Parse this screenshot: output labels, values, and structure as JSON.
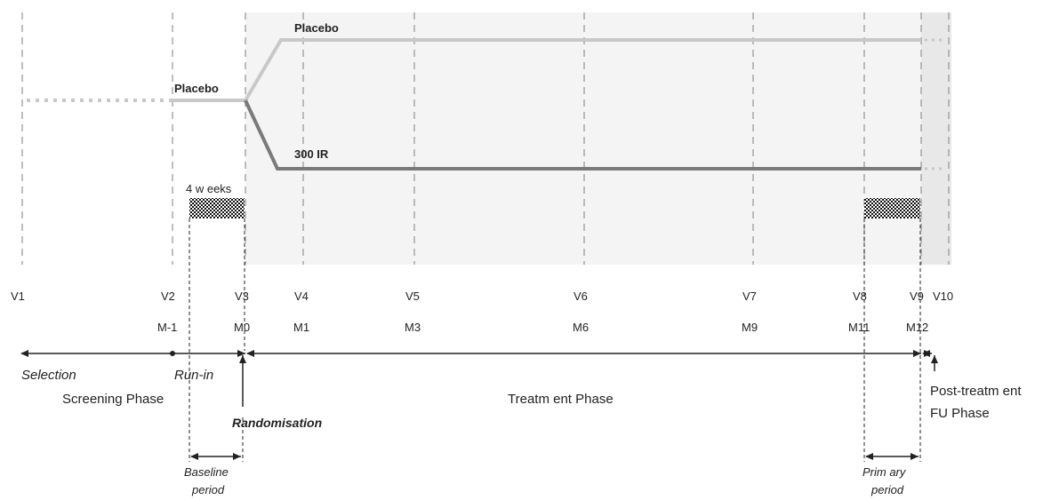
{
  "arms": {
    "placebo_top": "Placebo",
    "placebo_runin": "Placebo",
    "active": "300 IR"
  },
  "weeks_label": "4 w eeks",
  "visits": [
    "V1",
    "V2",
    "V3",
    "V4",
    "V5",
    "V6",
    "V7",
    "V8",
    "V9",
    "V10"
  ],
  "months": [
    "M-1",
    "M0",
    "M1",
    "M3",
    "M6",
    "M9",
    "M11",
    "M12"
  ],
  "periods": {
    "selection": "Selection",
    "runin": "Run-in"
  },
  "phases": {
    "screening": "Screening Phase",
    "treatment": "Treatm ent  Phase",
    "post_line1": "Post-treatm ent",
    "post_line2": "FU Phase"
  },
  "randomisation": "Randomisation",
  "baseline": {
    "line1": "Baseline",
    "line2": "period"
  },
  "primary": {
    "line1": "Prim ary",
    "line2": "period"
  },
  "colors": {
    "placebo": "#c8c8c8",
    "active": "#7a7a7a",
    "shade": "#f2f2f2",
    "grid": "#9a9a9a",
    "axis": "#222222"
  }
}
